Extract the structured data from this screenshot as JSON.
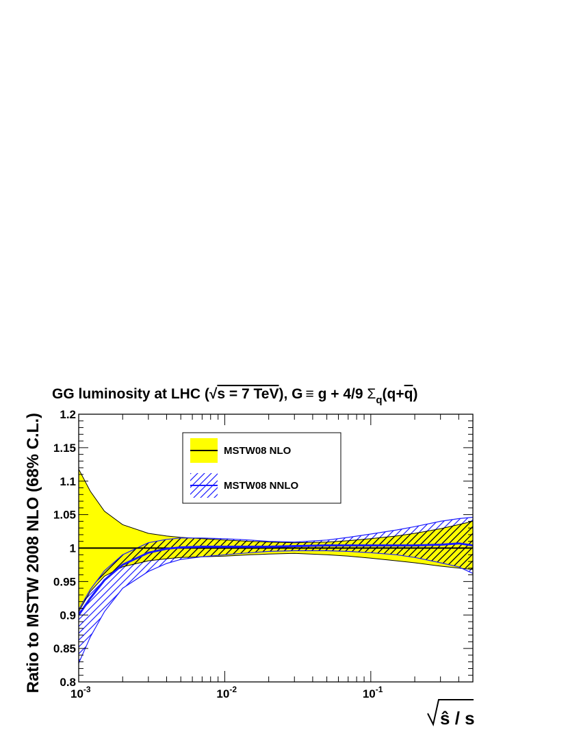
{
  "chart_data": {
    "type": "line",
    "title": {
      "prefix": "GG luminosity at LHC (",
      "sqrt_arg": "s = 7 TeV",
      "middle": "), G",
      "equiv": "≡",
      "after_equiv": " g + 4/9 ",
      "sigma": "Σ",
      "sigma_sub": "q",
      "paren_open": "(q+",
      "qbar": "q",
      "paren_close": ")"
    },
    "ylabel": "Ratio to MSTW 2008 NLO (68% C.L.)",
    "xlabel": {
      "hat": "ŝ",
      "rest": " / s"
    },
    "xscale": "log",
    "xlim": [
      0.001,
      0.5
    ],
    "ylim": [
      0.8,
      1.2
    ],
    "xticks": [
      {
        "base": "10",
        "exp": "-3",
        "value": 0.001
      },
      {
        "base": "10",
        "exp": "-2",
        "value": 0.01
      },
      {
        "base": "10",
        "exp": "-1",
        "value": 0.1
      }
    ],
    "yticks": [
      "0.8",
      "0.85",
      "0.9",
      "0.95",
      "1",
      "1.05",
      "1.1",
      "1.15",
      "1.2"
    ],
    "grid": false,
    "legend_position": "top-center",
    "x": [
      0.001,
      0.0012,
      0.0015,
      0.002,
      0.003,
      0.004,
      0.005,
      0.007,
      0.01,
      0.015,
      0.02,
      0.03,
      0.05,
      0.07,
      0.1,
      0.15,
      0.2,
      0.3,
      0.4,
      0.5
    ],
    "series": [
      {
        "name": "MSTW08 NLO",
        "style": "yellow-band",
        "fill_color": "#ffff00",
        "line_color": "#000000",
        "central": [
          1,
          1,
          1,
          1,
          1,
          1,
          1,
          1,
          1,
          1,
          1,
          1,
          1,
          1,
          1,
          1,
          1,
          1,
          1,
          1
        ],
        "upper": [
          1.118,
          1.085,
          1.055,
          1.035,
          1.022,
          1.018,
          1.016,
          1.014,
          1.012,
          1.01,
          1.009,
          1.008,
          1.009,
          1.011,
          1.014,
          1.018,
          1.022,
          1.029,
          1.035,
          1.04
        ],
        "lower": [
          0.905,
          0.935,
          0.958,
          0.972,
          0.981,
          0.984,
          0.986,
          0.987,
          0.988,
          0.99,
          0.991,
          0.992,
          0.99,
          0.988,
          0.985,
          0.981,
          0.978,
          0.973,
          0.97,
          0.968
        ]
      },
      {
        "name": "MSTW08 NNLO",
        "style": "blue-hatched-band",
        "fill_color": "#0000cc",
        "line_color": "#1a1aff",
        "central": [
          0.9,
          0.925,
          0.952,
          0.975,
          0.993,
          0.999,
          1.001,
          1.002,
          1.002,
          1.002,
          1.002,
          1.003,
          1.004,
          1.004,
          1.004,
          1.004,
          1.004,
          1.005,
          1.007,
          1.004
        ],
        "upper": [
          0.908,
          0.938,
          0.966,
          0.99,
          1.008,
          1.013,
          1.015,
          1.015,
          1.014,
          1.012,
          1.01,
          1.009,
          1.012,
          1.016,
          1.021,
          1.027,
          1.032,
          1.04,
          1.044,
          1.046
        ],
        "lower": [
          0.828,
          0.867,
          0.905,
          0.94,
          0.965,
          0.977,
          0.983,
          0.987,
          0.99,
          0.993,
          0.995,
          0.996,
          0.996,
          0.995,
          0.993,
          0.99,
          0.986,
          0.978,
          0.972,
          0.962
        ]
      }
    ]
  }
}
